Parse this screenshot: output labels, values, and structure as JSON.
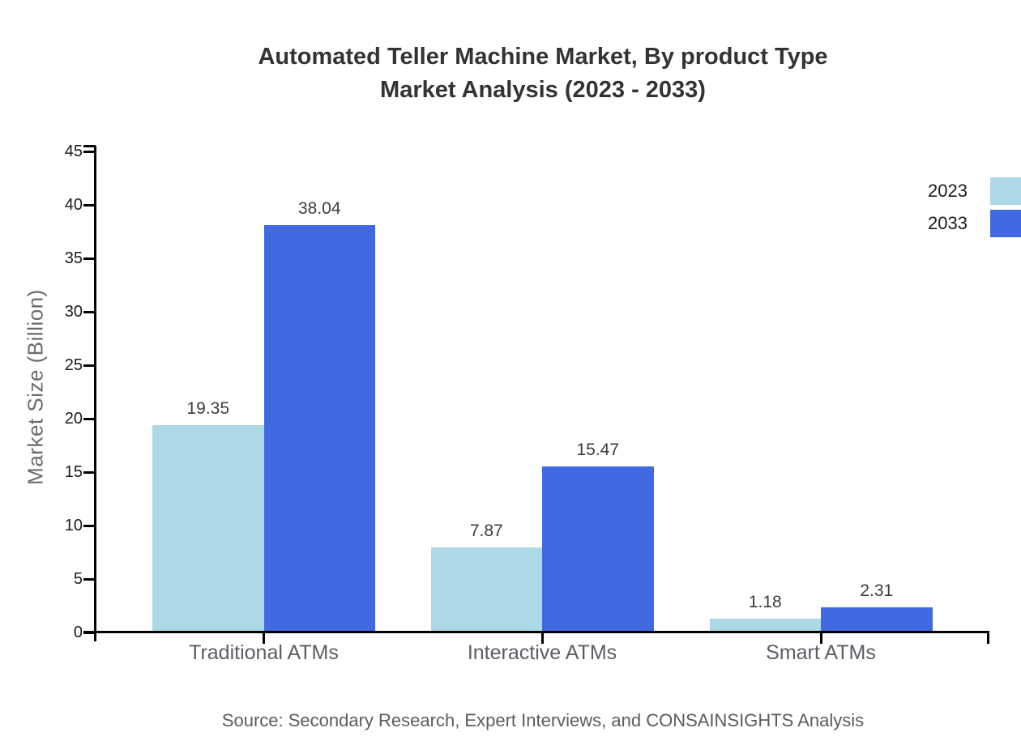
{
  "title": {
    "line1": "Automated Teller Machine Market, By product Type",
    "line2": "Market Analysis (2023 - 2033)"
  },
  "y_axis_title": "Market Size (Billion)",
  "source_note": "Source: Secondary Research, Expert Interviews, and CONSAINSIGHTS Analysis",
  "legend": {
    "items": [
      {
        "label": "2023",
        "color": "#ADD8E6"
      },
      {
        "label": "2033",
        "color": "#4169E1"
      }
    ]
  },
  "chart_data": {
    "type": "bar",
    "title": "Automated Teller Machine Market, By product Type Market Analysis (2023 - 2033)",
    "categories": [
      "Traditional ATMs",
      "Interactive ATMs",
      "Smart ATMs"
    ],
    "series": [
      {
        "name": "2023",
        "color": "#ADD8E6",
        "values": [
          19.35,
          7.87,
          1.18
        ]
      },
      {
        "name": "2033",
        "color": "#4169E1",
        "values": [
          38.04,
          15.47,
          2.31
        ]
      }
    ],
    "xlabel": "",
    "ylabel": "Market Size (Billion)",
    "ylim": [
      0,
      45
    ],
    "y_ticks": [
      0,
      5,
      10,
      15,
      20,
      25,
      30,
      35,
      40,
      45
    ],
    "grid": false,
    "legend_position": "top-right",
    "value_labels": "above-bars"
  }
}
